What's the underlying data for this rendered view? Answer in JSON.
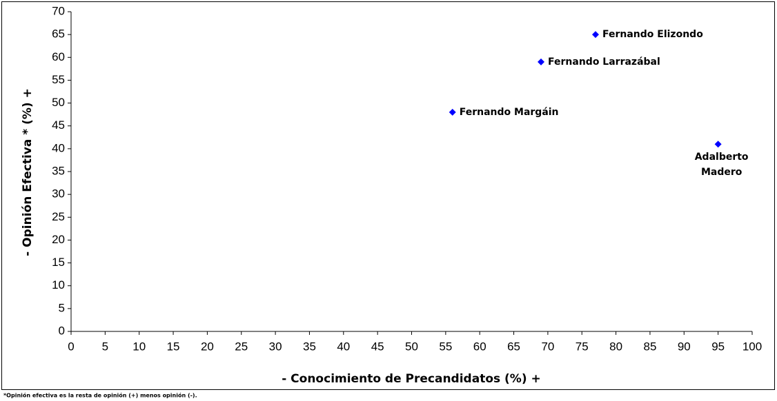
{
  "chart_data": {
    "type": "scatter",
    "x_label": "- Conocimiento de Precandidatos (%) +",
    "y_label": "- Opinión Efectiva * (%) +",
    "footnote": "*Opinión efectiva es la resta de opinión (+) menos opinión (-).",
    "x": [
      77,
      69,
      56,
      95
    ],
    "values": [
      65,
      59,
      48,
      41
    ],
    "point_labels": [
      [
        "Fernando Elizondo"
      ],
      [
        "Fernando Larrazábal"
      ],
      [
        "Fernando Margáin"
      ],
      [
        "Adalberto",
        "Madero"
      ]
    ],
    "color": "#0000ff",
    "xlim": [
      0,
      100
    ],
    "xticks": [
      0,
      5,
      10,
      15,
      20,
      25,
      30,
      35,
      40,
      45,
      50,
      55,
      60,
      65,
      70,
      75,
      80,
      85,
      90,
      95,
      100
    ],
    "ylim": [
      0,
      70
    ],
    "yticks": [
      0,
      5,
      10,
      15,
      20,
      25,
      30,
      35,
      40,
      45,
      50,
      55,
      60,
      65,
      70
    ],
    "grid": false
  }
}
